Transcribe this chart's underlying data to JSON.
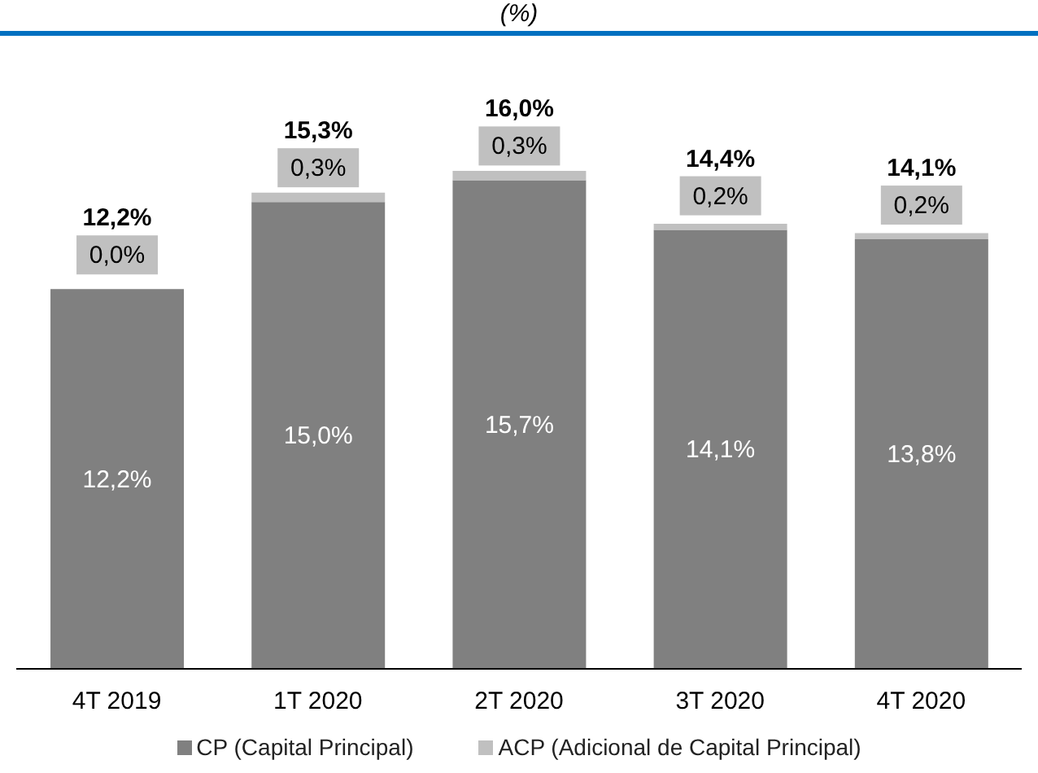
{
  "chart_data": {
    "type": "bar",
    "title": "(%)",
    "stacked": true,
    "categories": [
      "4T 2019",
      "1T 2020",
      "2T 2020",
      "3T 2020",
      "4T 2020"
    ],
    "series": [
      {
        "name": "CP (Capital Principal)",
        "color": "#808080",
        "values": [
          12.2,
          15.0,
          15.7,
          14.1,
          13.8
        ],
        "value_labels": [
          "12,2%",
          "15,0%",
          "15,7%",
          "14,1%",
          "13,8%"
        ]
      },
      {
        "name": "ACP (Adicional de Capital Principal)",
        "color": "#c0c0c0",
        "values": [
          0.0,
          0.3,
          0.3,
          0.2,
          0.2
        ],
        "value_labels": [
          "0,0%",
          "0,3%",
          "0,3%",
          "0,2%",
          "0,2%"
        ]
      }
    ],
    "totals": [
      "12,2%",
      "15,3%",
      "16,0%",
      "14,4%",
      "14,1%"
    ],
    "legend": "bottom",
    "grid": false
  }
}
